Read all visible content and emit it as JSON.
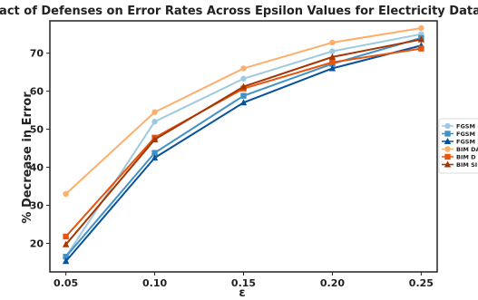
{
  "chart_data": {
    "type": "line",
    "title": "Impact of Defenses on Error Rates Across Epsilon Values for Electricity Dataset",
    "xlabel": "ε",
    "ylabel": "% Decrease in Error",
    "x": [
      0.05,
      0.1,
      0.15,
      0.2,
      0.25
    ],
    "x_tick_labels": [
      "0.05",
      "0.10",
      "0.15",
      "0.20",
      "0.25"
    ],
    "y_ticks": [
      20,
      30,
      40,
      50,
      60,
      70
    ],
    "xlim": [
      0.041,
      0.259
    ],
    "ylim": [
      12.5,
      78.5
    ],
    "grid": false,
    "legend_position": "right, outside plot (clipped)",
    "series": [
      {
        "name": "FGSM",
        "color": "#9ecae1",
        "marker": "circle",
        "values": [
          16.5,
          52.0,
          63.3,
          70.5,
          75.0
        ]
      },
      {
        "name": "FGSM",
        "color": "#4292c6",
        "marker": "square",
        "values": [
          16.5,
          43.8,
          58.8,
          67.2,
          74.0
        ]
      },
      {
        "name": "FGSM",
        "color": "#08519c",
        "marker": "triangle",
        "values": [
          15.3,
          42.5,
          57.0,
          66.0,
          72.0
        ]
      },
      {
        "name": "BIM DA",
        "color": "#fdae6b",
        "marker": "circle",
        "values": [
          33.0,
          54.5,
          66.0,
          72.8,
          76.6
        ]
      },
      {
        "name": "BIM D",
        "color": "#e6550d",
        "marker": "square",
        "values": [
          21.8,
          47.8,
          60.7,
          67.6,
          71.2
        ]
      },
      {
        "name": "BIM SI",
        "color": "#a63603",
        "marker": "triangle",
        "values": [
          19.7,
          47.3,
          61.2,
          69.0,
          73.6
        ]
      }
    ]
  }
}
